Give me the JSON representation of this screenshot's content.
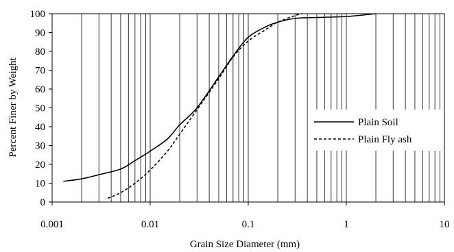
{
  "chart_data": {
    "type": "line",
    "title": "",
    "xlabel": "Grain Size Diameter (mm)",
    "ylabel": "Percent Finer by Weight",
    "x_scale": "log",
    "xlim": [
      0.001,
      10
    ],
    "ylim": [
      0,
      100
    ],
    "x_ticks": [
      "0.001",
      "0.01",
      "0.1",
      "1",
      "10"
    ],
    "y_ticks": [
      "0",
      "10",
      "20",
      "30",
      "40",
      "50",
      "60",
      "70",
      "80",
      "90",
      "100"
    ],
    "grid": "vertical lines at log subdivisions",
    "legend_position": "center-right",
    "series": [
      {
        "name": "Plain Soil",
        "style": "solid",
        "color": "#000000",
        "points": [
          [
            0.0013,
            11
          ],
          [
            0.002,
            12.3
          ],
          [
            0.003,
            14.5
          ],
          [
            0.005,
            17.5
          ],
          [
            0.007,
            22
          ],
          [
            0.01,
            27
          ],
          [
            0.015,
            33.5
          ],
          [
            0.02,
            41
          ],
          [
            0.03,
            50
          ],
          [
            0.05,
            66.5
          ],
          [
            0.07,
            77.5
          ],
          [
            0.1,
            87.5
          ],
          [
            0.15,
            93
          ],
          [
            0.2,
            95.5
          ],
          [
            0.3,
            97.5
          ],
          [
            0.5,
            98
          ],
          [
            1,
            98.5
          ],
          [
            2,
            100
          ]
        ]
      },
      {
        "name": "Plain Fly ash",
        "style": "dashed",
        "color": "#000000",
        "points": [
          [
            0.0037,
            2
          ],
          [
            0.005,
            5
          ],
          [
            0.007,
            10
          ],
          [
            0.01,
            17
          ],
          [
            0.015,
            27
          ],
          [
            0.02,
            36
          ],
          [
            0.03,
            49
          ],
          [
            0.05,
            65.5
          ],
          [
            0.07,
            77
          ],
          [
            0.1,
            85.5
          ],
          [
            0.15,
            91.5
          ],
          [
            0.2,
            95.5
          ],
          [
            0.3,
            99
          ],
          [
            0.35,
            100
          ]
        ]
      }
    ]
  }
}
